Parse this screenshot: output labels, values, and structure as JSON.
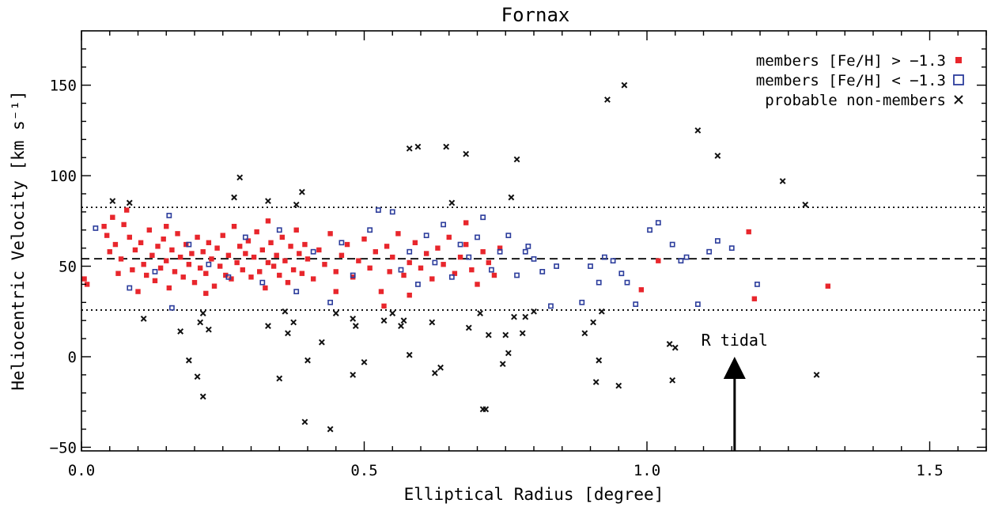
{
  "chart_data": {
    "type": "scatter",
    "title": "Fornax",
    "xlabel": "Elliptical Radius [degree]",
    "ylabel": "Heliocentric Velocity [km s⁻¹]",
    "xlim": [
      0.0,
      1.6
    ],
    "ylim": [
      -52,
      180
    ],
    "x_ticks": [
      0.0,
      0.5,
      1.0,
      1.5
    ],
    "x_tick_labels": [
      "0.0",
      "0.5",
      "1.0",
      "1.5"
    ],
    "y_ticks": [
      -50,
      0,
      50,
      100,
      150
    ],
    "y_tick_labels": [
      "−50",
      "0",
      "50",
      "100",
      "150"
    ],
    "grid": false,
    "legend_position": "top-right",
    "reference_lines": [
      {
        "style": "dashed",
        "y": 54.1
      },
      {
        "style": "dotted",
        "y": 82.5
      },
      {
        "style": "dotted",
        "y": 25.8
      }
    ],
    "annotation": {
      "text": "R tidal",
      "x": 1.155,
      "arrow_from_y": -52,
      "arrow_to_y": 0
    },
    "series": [
      {
        "name": "members [Fe/H] > −1.3",
        "marker": "filled-square",
        "color": "#e8262c",
        "points": [
          [
            0.005,
            43
          ],
          [
            0.01,
            40
          ],
          [
            0.04,
            72
          ],
          [
            0.045,
            67
          ],
          [
            0.05,
            58
          ],
          [
            0.055,
            77
          ],
          [
            0.06,
            62
          ],
          [
            0.065,
            46
          ],
          [
            0.07,
            54
          ],
          [
            0.075,
            73
          ],
          [
            0.08,
            81
          ],
          [
            0.085,
            66
          ],
          [
            0.09,
            48
          ],
          [
            0.095,
            59
          ],
          [
            0.1,
            36
          ],
          [
            0.105,
            63
          ],
          [
            0.11,
            51
          ],
          [
            0.115,
            45
          ],
          [
            0.12,
            70
          ],
          [
            0.125,
            56
          ],
          [
            0.13,
            42
          ],
          [
            0.135,
            61
          ],
          [
            0.14,
            49
          ],
          [
            0.145,
            65
          ],
          [
            0.15,
            53
          ],
          [
            0.155,
            38
          ],
          [
            0.16,
            59
          ],
          [
            0.165,
            47
          ],
          [
            0.17,
            68
          ],
          [
            0.175,
            55
          ],
          [
            0.18,
            44
          ],
          [
            0.185,
            62
          ],
          [
            0.19,
            51
          ],
          [
            0.195,
            57
          ],
          [
            0.2,
            41
          ],
          [
            0.205,
            66
          ],
          [
            0.21,
            49
          ],
          [
            0.215,
            58
          ],
          [
            0.22,
            46
          ],
          [
            0.225,
            63
          ],
          [
            0.23,
            54
          ],
          [
            0.235,
            39
          ],
          [
            0.24,
            60
          ],
          [
            0.245,
            50
          ],
          [
            0.25,
            67
          ],
          [
            0.255,
            45
          ],
          [
            0.26,
            56
          ],
          [
            0.265,
            43
          ],
          [
            0.27,
            72
          ],
          [
            0.275,
            52
          ],
          [
            0.28,
            61
          ],
          [
            0.285,
            48
          ],
          [
            0.29,
            57
          ],
          [
            0.295,
            64
          ],
          [
            0.3,
            44
          ],
          [
            0.305,
            55
          ],
          [
            0.31,
            69
          ],
          [
            0.315,
            47
          ],
          [
            0.32,
            59
          ],
          [
            0.325,
            38
          ],
          [
            0.33,
            52
          ],
          [
            0.335,
            63
          ],
          [
            0.34,
            50
          ],
          [
            0.345,
            56
          ],
          [
            0.35,
            45
          ],
          [
            0.355,
            66
          ],
          [
            0.36,
            53
          ],
          [
            0.365,
            41
          ],
          [
            0.37,
            61
          ],
          [
            0.375,
            48
          ],
          [
            0.38,
            70
          ],
          [
            0.385,
            57
          ],
          [
            0.39,
            46
          ],
          [
            0.395,
            62
          ],
          [
            0.4,
            54
          ],
          [
            0.41,
            43
          ],
          [
            0.42,
            59
          ],
          [
            0.43,
            51
          ],
          [
            0.44,
            68
          ],
          [
            0.45,
            47
          ],
          [
            0.46,
            56
          ],
          [
            0.47,
            62
          ],
          [
            0.48,
            44
          ],
          [
            0.49,
            53
          ],
          [
            0.5,
            65
          ],
          [
            0.51,
            49
          ],
          [
            0.52,
            58
          ],
          [
            0.53,
            36
          ],
          [
            0.535,
            28
          ],
          [
            0.54,
            61
          ],
          [
            0.545,
            47
          ],
          [
            0.55,
            55
          ],
          [
            0.56,
            68
          ],
          [
            0.57,
            45
          ],
          [
            0.58,
            52
          ],
          [
            0.59,
            63
          ],
          [
            0.6,
            49
          ],
          [
            0.61,
            57
          ],
          [
            0.62,
            43
          ],
          [
            0.63,
            60
          ],
          [
            0.64,
            51
          ],
          [
            0.65,
            66
          ],
          [
            0.66,
            46
          ],
          [
            0.67,
            55
          ],
          [
            0.68,
            62
          ],
          [
            0.69,
            48
          ],
          [
            0.7,
            40
          ],
          [
            0.71,
            58
          ],
          [
            0.72,
            52
          ],
          [
            0.73,
            45
          ],
          [
            0.74,
            60
          ],
          [
            0.15,
            72
          ],
          [
            0.22,
            35
          ],
          [
            0.33,
            75
          ],
          [
            0.45,
            36
          ],
          [
            0.58,
            34
          ],
          [
            0.68,
            74
          ],
          [
            0.99,
            37
          ],
          [
            1.02,
            53
          ],
          [
            1.18,
            69
          ],
          [
            1.19,
            32
          ],
          [
            1.32,
            39
          ]
        ]
      },
      {
        "name": "members [Fe/H] < −1.3",
        "marker": "open-square",
        "color": "#2c3d9c",
        "points": [
          [
            0.025,
            71
          ],
          [
            0.085,
            38
          ],
          [
            0.13,
            47
          ],
          [
            0.155,
            78
          ],
          [
            0.16,
            27
          ],
          [
            0.19,
            62
          ],
          [
            0.225,
            51
          ],
          [
            0.26,
            44
          ],
          [
            0.29,
            66
          ],
          [
            0.32,
            41
          ],
          [
            0.35,
            70
          ],
          [
            0.38,
            36
          ],
          [
            0.41,
            58
          ],
          [
            0.44,
            30
          ],
          [
            0.46,
            63
          ],
          [
            0.48,
            45
          ],
          [
            0.51,
            70
          ],
          [
            0.525,
            81
          ],
          [
            0.55,
            80
          ],
          [
            0.565,
            48
          ],
          [
            0.58,
            58
          ],
          [
            0.595,
            40
          ],
          [
            0.61,
            67
          ],
          [
            0.625,
            52
          ],
          [
            0.64,
            73
          ],
          [
            0.655,
            44
          ],
          [
            0.67,
            62
          ],
          [
            0.685,
            55
          ],
          [
            0.7,
            66
          ],
          [
            0.71,
            77
          ],
          [
            0.725,
            48
          ],
          [
            0.74,
            58
          ],
          [
            0.755,
            67
          ],
          [
            0.77,
            45
          ],
          [
            0.785,
            58
          ],
          [
            0.79,
            61
          ],
          [
            0.8,
            54
          ],
          [
            0.815,
            47
          ],
          [
            0.83,
            28
          ],
          [
            0.84,
            50
          ],
          [
            0.885,
            30
          ],
          [
            0.9,
            50
          ],
          [
            0.915,
            41
          ],
          [
            0.925,
            55
          ],
          [
            0.94,
            53
          ],
          [
            0.955,
            46
          ],
          [
            0.965,
            41
          ],
          [
            0.98,
            29
          ],
          [
            1.005,
            70
          ],
          [
            1.02,
            74
          ],
          [
            1.045,
            62
          ],
          [
            1.06,
            53
          ],
          [
            1.07,
            55
          ],
          [
            1.09,
            29
          ],
          [
            1.11,
            58
          ],
          [
            1.125,
            64
          ],
          [
            1.15,
            60
          ],
          [
            1.195,
            40
          ]
        ]
      },
      {
        "name": "probable non-members",
        "marker": "x-cross",
        "color": "#111111",
        "points": [
          [
            0.055,
            86
          ],
          [
            0.085,
            85
          ],
          [
            0.11,
            21
          ],
          [
            0.175,
            14
          ],
          [
            0.19,
            -2
          ],
          [
            0.205,
            -11
          ],
          [
            0.21,
            19
          ],
          [
            0.215,
            24
          ],
          [
            0.215,
            -22
          ],
          [
            0.225,
            15
          ],
          [
            0.27,
            88
          ],
          [
            0.28,
            99
          ],
          [
            0.33,
            86
          ],
          [
            0.33,
            17
          ],
          [
            0.35,
            -12
          ],
          [
            0.36,
            25
          ],
          [
            0.365,
            13
          ],
          [
            0.375,
            19
          ],
          [
            0.38,
            84
          ],
          [
            0.39,
            91
          ],
          [
            0.395,
            -36
          ],
          [
            0.4,
            -2
          ],
          [
            0.425,
            8
          ],
          [
            0.44,
            -40
          ],
          [
            0.45,
            24
          ],
          [
            0.48,
            -10
          ],
          [
            0.48,
            21
          ],
          [
            0.485,
            17
          ],
          [
            0.5,
            -3
          ],
          [
            0.535,
            20
          ],
          [
            0.55,
            24
          ],
          [
            0.565,
            17
          ],
          [
            0.57,
            20
          ],
          [
            0.58,
            115
          ],
          [
            0.58,
            1
          ],
          [
            0.595,
            116
          ],
          [
            0.62,
            19
          ],
          [
            0.625,
            -9
          ],
          [
            0.635,
            -6
          ],
          [
            0.645,
            116
          ],
          [
            0.655,
            85
          ],
          [
            0.68,
            112
          ],
          [
            0.685,
            16
          ],
          [
            0.705,
            24
          ],
          [
            0.71,
            -29
          ],
          [
            0.715,
            -29
          ],
          [
            0.72,
            12
          ],
          [
            0.745,
            -4
          ],
          [
            0.75,
            12
          ],
          [
            0.755,
            2
          ],
          [
            0.76,
            88
          ],
          [
            0.765,
            22
          ],
          [
            0.77,
            109
          ],
          [
            0.78,
            13
          ],
          [
            0.785,
            22
          ],
          [
            0.8,
            25
          ],
          [
            0.89,
            13
          ],
          [
            0.905,
            19
          ],
          [
            0.91,
            -14
          ],
          [
            0.915,
            -2
          ],
          [
            0.92,
            25
          ],
          [
            0.93,
            142
          ],
          [
            0.95,
            -16
          ],
          [
            0.96,
            150
          ],
          [
            1.04,
            7
          ],
          [
            1.045,
            -13
          ],
          [
            1.05,
            5
          ],
          [
            1.09,
            125
          ],
          [
            1.125,
            111
          ],
          [
            1.24,
            97
          ],
          [
            1.28,
            84
          ],
          [
            1.3,
            -10
          ]
        ]
      }
    ]
  }
}
